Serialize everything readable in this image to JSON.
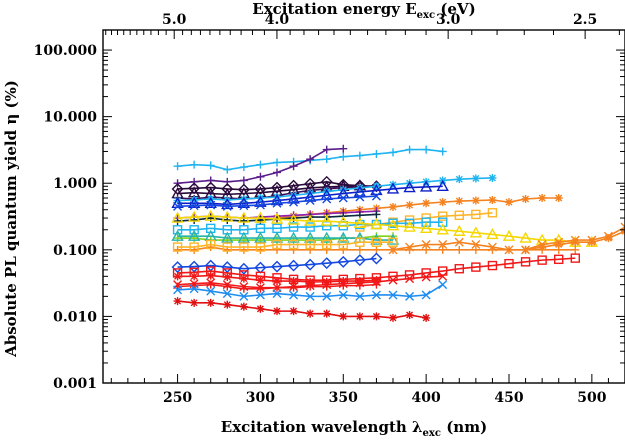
{
  "chart_data": {
    "type": "line",
    "xlabel": "Excitation wavelength",
    "xlabel_symbol": "λ",
    "xlabel_subscript": "exc",
    "xlabel_unit": "(nm)",
    "x2label": "Excitation energy E",
    "x2label_subscript": "exc",
    "x2label_unit": "(eV)",
    "ylabel": "Absolute PL quantum yield η (%)",
    "xlim": [
      205,
      520
    ],
    "ylim": [
      0.001,
      200
    ],
    "yscale": "log",
    "grid": false,
    "legend": "none",
    "xticks": [
      250,
      300,
      350,
      400,
      450,
      500
    ],
    "xtick_labels": [
      "250",
      "300",
      "350",
      "400",
      "450",
      "500"
    ],
    "x2ticks_ev": [
      5.0,
      4.0,
      3.0,
      2.5
    ],
    "x2tick_labels": [
      "5.0",
      "4.0",
      "3.0",
      "2.5"
    ],
    "yticks": [
      0.001,
      0.01,
      0.1,
      1,
      10,
      100
    ],
    "ytick_labels": [
      "0.001",
      "0.010",
      "0.100",
      "1.000",
      "10.000",
      "100.000"
    ],
    "series": [
      {
        "color": "#1fb4f0",
        "marker": "plus",
        "x": [
          250,
          260,
          270,
          280,
          290,
          300,
          310,
          320,
          330,
          340,
          350,
          360,
          370,
          380,
          390,
          400,
          410
        ],
        "y": [
          1.8,
          1.9,
          1.85,
          1.6,
          1.75,
          1.9,
          2.05,
          2.1,
          2.2,
          2.3,
          2.5,
          2.6,
          2.75,
          2.9,
          3.2,
          3.2,
          3.0
        ]
      },
      {
        "color": "#5a1e8a",
        "marker": "plus",
        "x": [
          250,
          260,
          270,
          280,
          290,
          300,
          310,
          320,
          330,
          340,
          350
        ],
        "y": [
          1.0,
          1.05,
          1.1,
          1.05,
          1.1,
          1.25,
          1.45,
          1.8,
          2.3,
          3.2,
          3.3
        ]
      },
      {
        "color": "#2a0a3a",
        "marker": "diamond",
        "x": [
          250,
          260,
          270,
          280,
          290,
          300,
          310,
          320,
          330,
          340,
          350,
          360,
          370
        ],
        "y": [
          0.82,
          0.84,
          0.86,
          0.82,
          0.8,
          0.82,
          0.86,
          0.92,
          0.98,
          1.05,
          0.95,
          0.92,
          0.9
        ]
      },
      {
        "color": "#2a0a3a",
        "marker": "triangle",
        "x": [
          250,
          260,
          270,
          280,
          290,
          300,
          310,
          320,
          330,
          340,
          350,
          360
        ],
        "y": [
          0.7,
          0.72,
          0.7,
          0.68,
          0.7,
          0.72,
          0.76,
          0.8,
          0.85,
          0.88,
          0.9,
          0.92
        ]
      },
      {
        "color": "#3c1058",
        "marker": "plus",
        "x": [
          250,
          260,
          270,
          280,
          290,
          300,
          310,
          320,
          330,
          340,
          350,
          360,
          370
        ],
        "y": [
          0.6,
          0.58,
          0.62,
          0.6,
          0.58,
          0.6,
          0.65,
          0.72,
          0.78,
          0.82,
          0.86,
          0.88,
          0.92
        ]
      },
      {
        "color": "#1fb4f0",
        "marker": "asterisk",
        "x": [
          250,
          260,
          270,
          280,
          290,
          300,
          310,
          320,
          330,
          340,
          350,
          360,
          370,
          380,
          390,
          400,
          410,
          420,
          430,
          440
        ],
        "y": [
          0.55,
          0.56,
          0.58,
          0.56,
          0.58,
          0.6,
          0.62,
          0.66,
          0.7,
          0.75,
          0.8,
          0.85,
          0.9,
          0.95,
          1.0,
          1.05,
          1.1,
          1.15,
          1.18,
          1.2
        ]
      },
      {
        "color": "#0c1fc8",
        "marker": "triangle",
        "x": [
          250,
          260,
          270,
          280,
          290,
          300,
          310,
          320,
          330,
          340,
          350,
          360,
          370,
          380,
          390,
          400,
          410
        ],
        "y": [
          0.5,
          0.5,
          0.5,
          0.48,
          0.5,
          0.52,
          0.55,
          0.58,
          0.62,
          0.66,
          0.7,
          0.74,
          0.78,
          0.82,
          0.86,
          0.88,
          0.9
        ]
      },
      {
        "color": "#1448e0",
        "marker": "cross",
        "x": [
          250,
          260,
          270,
          280,
          290,
          300,
          310,
          320,
          330,
          340,
          350,
          360,
          370
        ],
        "y": [
          0.45,
          0.46,
          0.47,
          0.45,
          0.46,
          0.47,
          0.5,
          0.52,
          0.55,
          0.58,
          0.6,
          0.62,
          0.64
        ]
      },
      {
        "color": "#f58220",
        "marker": "asterisk",
        "x": [
          300,
          310,
          320,
          330,
          340,
          350,
          360,
          370,
          380,
          390,
          400,
          410,
          420,
          430,
          440,
          450,
          460,
          470,
          480
        ],
        "y": [
          0.28,
          0.3,
          0.32,
          0.34,
          0.36,
          0.38,
          0.4,
          0.42,
          0.44,
          0.47,
          0.5,
          0.52,
          0.54,
          0.55,
          0.56,
          0.52,
          0.58,
          0.6,
          0.6
        ]
      },
      {
        "color": "#9020b0",
        "marker": "plus",
        "x": [
          250,
          260,
          270,
          280,
          290,
          300,
          310,
          320,
          330,
          340,
          350,
          360,
          370
        ],
        "y": [
          0.3,
          0.31,
          0.32,
          0.31,
          0.3,
          0.31,
          0.32,
          0.33,
          0.34,
          0.35,
          0.36,
          0.37,
          0.38
        ]
      },
      {
        "color": "#0a2a40",
        "marker": "plus",
        "x": [
          250,
          260,
          270,
          280,
          290,
          300,
          310,
          320,
          330,
          340,
          350,
          360,
          370
        ],
        "y": [
          0.27,
          0.28,
          0.3,
          0.28,
          0.27,
          0.28,
          0.29,
          0.3,
          0.31,
          0.31,
          0.32,
          0.33,
          0.34
        ]
      },
      {
        "color": "#ffb52a",
        "marker": "square",
        "x": [
          360,
          370,
          380,
          390,
          400,
          410,
          420,
          430,
          440
        ],
        "y": [
          0.22,
          0.24,
          0.26,
          0.28,
          0.3,
          0.32,
          0.33,
          0.34,
          0.36
        ]
      },
      {
        "color": "#1fb4f0",
        "marker": "square",
        "x": [
          250,
          260,
          270,
          280,
          290,
          300,
          310,
          320,
          330,
          340,
          350,
          360,
          370,
          380,
          390,
          400,
          410
        ],
        "y": [
          0.2,
          0.2,
          0.21,
          0.2,
          0.2,
          0.21,
          0.21,
          0.22,
          0.22,
          0.23,
          0.23,
          0.24,
          0.24,
          0.25,
          0.25,
          0.26,
          0.26
        ]
      },
      {
        "color": "#f5d700",
        "marker": "triangle",
        "x": [
          250,
          260,
          270,
          280,
          290,
          300,
          310,
          320,
          330,
          340,
          350,
          360,
          370,
          380,
          390,
          400,
          410,
          420,
          430,
          440,
          450,
          460,
          470,
          480,
          490,
          500
        ],
        "y": [
          0.3,
          0.31,
          0.32,
          0.31,
          0.3,
          0.3,
          0.29,
          0.28,
          0.27,
          0.27,
          0.26,
          0.25,
          0.24,
          0.23,
          0.22,
          0.21,
          0.2,
          0.19,
          0.18,
          0.17,
          0.16,
          0.15,
          0.14,
          0.14,
          0.13,
          0.13
        ]
      },
      {
        "color": "#f58220",
        "marker": "cross",
        "x": [
          380,
          390,
          400,
          410,
          420,
          430,
          440,
          450,
          460,
          470,
          480,
          490,
          500,
          510,
          520
        ],
        "y": [
          0.1,
          0.11,
          0.12,
          0.12,
          0.13,
          0.12,
          0.11,
          0.1,
          0.1,
          0.12,
          0.13,
          0.14,
          0.14,
          0.16,
          0.22
        ]
      },
      {
        "color": "#f58220",
        "marker": "asterisk",
        "x": [
          460,
          470,
          480,
          490,
          500,
          510,
          520
        ],
        "y": [
          0.1,
          0.11,
          0.12,
          0.13,
          0.13,
          0.15,
          0.19
        ]
      },
      {
        "color": "#7fd21c",
        "marker": "plus",
        "x": [
          250,
          260,
          270,
          280,
          290,
          300,
          310,
          320,
          330,
          340,
          350,
          360,
          370,
          380
        ],
        "y": [
          0.15,
          0.15,
          0.14,
          0.14,
          0.14,
          0.14,
          0.14,
          0.14,
          0.14,
          0.14,
          0.15,
          0.15,
          0.16,
          0.16
        ]
      },
      {
        "color": "#26b3aa",
        "marker": "triangle",
        "x": [
          250,
          260,
          270,
          280,
          290,
          300,
          310,
          320,
          330,
          340,
          350,
          360,
          370,
          380
        ],
        "y": [
          0.16,
          0.16,
          0.16,
          0.15,
          0.15,
          0.15,
          0.15,
          0.15,
          0.15,
          0.15,
          0.15,
          0.15,
          0.14,
          0.14
        ]
      },
      {
        "color": "#f58220",
        "marker": "plus",
        "x": [
          250,
          260,
          270,
          280,
          290,
          300,
          310,
          320,
          330,
          340,
          350,
          360,
          370,
          380,
          390,
          400,
          410,
          420,
          430,
          440,
          450,
          460,
          470,
          480,
          490
        ],
        "y": [
          0.1,
          0.1,
          0.11,
          0.1,
          0.1,
          0.1,
          0.1,
          0.1,
          0.1,
          0.1,
          0.1,
          0.1,
          0.1,
          0.1,
          0.1,
          0.1,
          0.1,
          0.1,
          0.1,
          0.1,
          0.1,
          0.1,
          0.1,
          0.1,
          0.1
        ]
      },
      {
        "color": "#ffb52a",
        "marker": "square",
        "x": [
          250,
          260,
          270,
          280,
          290,
          300,
          310,
          320,
          330,
          340,
          350,
          360,
          370,
          380
        ],
        "y": [
          0.11,
          0.11,
          0.12,
          0.11,
          0.11,
          0.11,
          0.12,
          0.12,
          0.12,
          0.12,
          0.12,
          0.13,
          0.13,
          0.13
        ]
      },
      {
        "color": "#1448e0",
        "marker": "diamond",
        "x": [
          250,
          260,
          270,
          280,
          290,
          300,
          310,
          320,
          330,
          340,
          350,
          360,
          370
        ],
        "y": [
          0.055,
          0.056,
          0.058,
          0.055,
          0.052,
          0.054,
          0.056,
          0.058,
          0.06,
          0.063,
          0.066,
          0.07,
          0.074
        ]
      },
      {
        "color": "#f01818",
        "marker": "square",
        "x": [
          250,
          260,
          270,
          280,
          290,
          300,
          310,
          320,
          330,
          340,
          350,
          360,
          370,
          380,
          390,
          400,
          410,
          420,
          430,
          440,
          450,
          460,
          470,
          480,
          490
        ],
        "y": [
          0.045,
          0.046,
          0.048,
          0.045,
          0.042,
          0.04,
          0.038,
          0.036,
          0.035,
          0.035,
          0.036,
          0.037,
          0.038,
          0.04,
          0.042,
          0.045,
          0.048,
          0.052,
          0.055,
          0.058,
          0.062,
          0.066,
          0.07,
          0.072,
          0.075
        ]
      },
      {
        "color": "#f01818",
        "marker": "asterisk",
        "x": [
          250,
          260,
          270,
          280,
          290,
          300,
          310,
          320,
          330,
          340,
          350,
          360,
          370
        ],
        "y": [
          0.04,
          0.04,
          0.041,
          0.039,
          0.037,
          0.035,
          0.034,
          0.034,
          0.033,
          0.033,
          0.034,
          0.034,
          0.035
        ]
      },
      {
        "color": "#f01818",
        "marker": "cross",
        "x": [
          250,
          260,
          270,
          280,
          290,
          300,
          310,
          320,
          330,
          340,
          350,
          360,
          370,
          380,
          390,
          400,
          410
        ],
        "y": [
          0.03,
          0.031,
          0.032,
          0.03,
          0.028,
          0.027,
          0.027,
          0.028,
          0.029,
          0.03,
          0.031,
          0.032,
          0.033,
          0.035,
          0.037,
          0.039,
          0.04
        ]
      },
      {
        "color": "#f01818",
        "marker": "plus",
        "x": [
          250,
          260,
          270,
          280,
          290,
          300,
          310,
          320,
          330,
          340,
          350,
          360,
          370
        ],
        "y": [
          0.028,
          0.029,
          0.03,
          0.028,
          0.026,
          0.026,
          0.027,
          0.027,
          0.028,
          0.028,
          0.029,
          0.029,
          0.03
        ]
      },
      {
        "color": "#1e8cf0",
        "marker": "cross",
        "x": [
          250,
          260,
          270,
          280,
          290,
          300,
          310,
          320,
          330,
          340,
          350,
          360,
          370,
          380,
          390,
          400,
          410
        ],
        "y": [
          0.025,
          0.026,
          0.024,
          0.022,
          0.02,
          0.021,
          0.022,
          0.021,
          0.02,
          0.02,
          0.021,
          0.02,
          0.021,
          0.021,
          0.02,
          0.021,
          0.03
        ]
      },
      {
        "color": "#e01010",
        "marker": "asterisk",
        "x": [
          250,
          260,
          270,
          280,
          290,
          300,
          310,
          320,
          330,
          340,
          350,
          360,
          370,
          380,
          390,
          400
        ],
        "y": [
          0.017,
          0.016,
          0.016,
          0.015,
          0.014,
          0.013,
          0.012,
          0.012,
          0.011,
          0.011,
          0.01,
          0.01,
          0.01,
          0.0095,
          0.0105,
          0.0095
        ]
      }
    ]
  }
}
